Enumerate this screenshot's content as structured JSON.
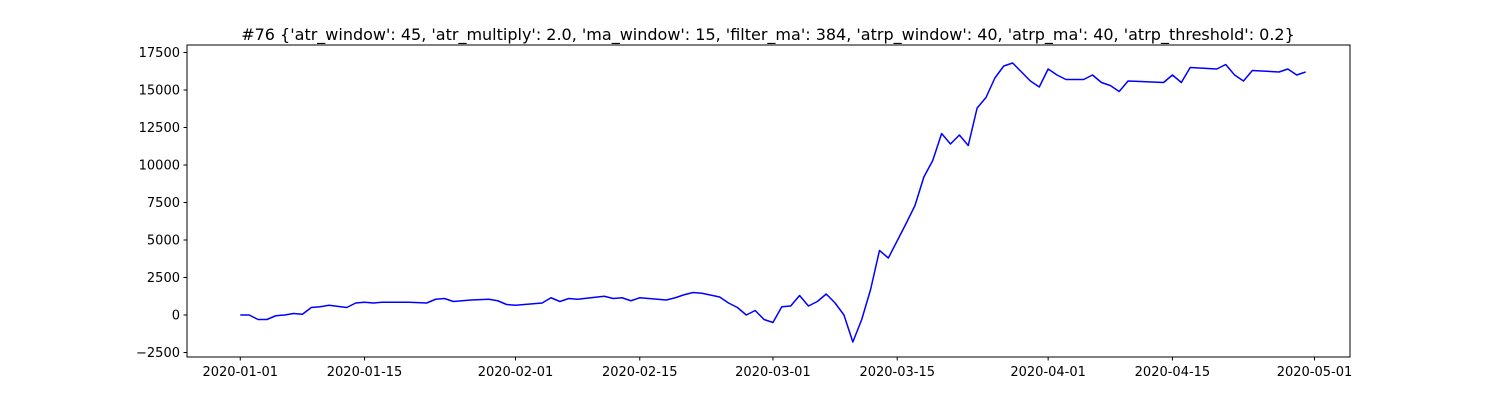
{
  "chart_data": {
    "type": "line",
    "title": "#76 {'atr_window': 45, 'atr_multiply': 2.0, 'ma_window': 15, 'filter_ma': 384, 'atrp_window': 40, 'atrp_ma': 40, 'atrp_threshold': 0.2}",
    "color": "#0000ff",
    "x": [
      "2020-01-01",
      "2020-01-02",
      "2020-01-03",
      "2020-01-04",
      "2020-01-05",
      "2020-01-06",
      "2020-01-07",
      "2020-01-08",
      "2020-01-09",
      "2020-01-10",
      "2020-01-11",
      "2020-01-13",
      "2020-01-14",
      "2020-01-15",
      "2020-01-16",
      "2020-01-17",
      "2020-01-20",
      "2020-01-22",
      "2020-01-23",
      "2020-01-24",
      "2020-01-25",
      "2020-01-27",
      "2020-01-29",
      "2020-01-30",
      "2020-01-31",
      "2020-02-01",
      "2020-02-04",
      "2020-02-05",
      "2020-02-06",
      "2020-02-07",
      "2020-02-08",
      "2020-02-11",
      "2020-02-12",
      "2020-02-13",
      "2020-02-14",
      "2020-02-15",
      "2020-02-18",
      "2020-02-19",
      "2020-02-20",
      "2020-02-21",
      "2020-02-22",
      "2020-02-24",
      "2020-02-25",
      "2020-02-26",
      "2020-02-27",
      "2020-02-28",
      "2020-02-29",
      "2020-03-01",
      "2020-03-02",
      "2020-03-03",
      "2020-03-04",
      "2020-03-05",
      "2020-03-06",
      "2020-03-07",
      "2020-03-08",
      "2020-03-09",
      "2020-03-10",
      "2020-03-11",
      "2020-03-12",
      "2020-03-13",
      "2020-03-14",
      "2020-03-16",
      "2020-03-17",
      "2020-03-18",
      "2020-03-19",
      "2020-03-20",
      "2020-03-21",
      "2020-03-22",
      "2020-03-23",
      "2020-03-24",
      "2020-03-25",
      "2020-03-26",
      "2020-03-27",
      "2020-03-28",
      "2020-03-29",
      "2020-03-30",
      "2020-03-31",
      "2020-04-01",
      "2020-04-02",
      "2020-04-03",
      "2020-04-05",
      "2020-04-06",
      "2020-04-07",
      "2020-04-08",
      "2020-04-09",
      "2020-04-10",
      "2020-04-14",
      "2020-04-15",
      "2020-04-16",
      "2020-04-17",
      "2020-04-20",
      "2020-04-21",
      "2020-04-22",
      "2020-04-23",
      "2020-04-24",
      "2020-04-27",
      "2020-04-28",
      "2020-04-29",
      "2020-04-30"
    ],
    "values": [
      0,
      0,
      -300,
      -300,
      -50,
      0,
      100,
      50,
      500,
      550,
      650,
      500,
      800,
      850,
      800,
      850,
      850,
      800,
      1050,
      1100,
      900,
      1000,
      1050,
      950,
      700,
      650,
      800,
      1150,
      900,
      1100,
      1050,
      1250,
      1100,
      1150,
      950,
      1150,
      1000,
      1150,
      1350,
      1500,
      1450,
      1200,
      800,
      500,
      0,
      300,
      -300,
      -500,
      550,
      600,
      1300,
      600,
      900,
      1400,
      800,
      0,
      -1800,
      -300,
      1700,
      4300,
      3800,
      6100,
      7300,
      9200,
      10300,
      12100,
      11400,
      12000,
      11300,
      13800,
      14500,
      15800,
      16600,
      16800,
      16200,
      15600,
      15200,
      16400,
      16000,
      15700,
      15700,
      16000,
      15500,
      15300,
      14900,
      15600,
      15500,
      16000,
      15500,
      16500,
      16400,
      16700,
      16000,
      15600,
      16300,
      16200,
      16400,
      16000,
      16200
    ],
    "xlim": [
      "2019-12-26",
      "2020-05-05"
    ],
    "xticks": [
      "2020-01-01",
      "2020-01-15",
      "2020-02-01",
      "2020-02-15",
      "2020-03-01",
      "2020-03-15",
      "2020-04-01",
      "2020-04-15",
      "2020-05-01"
    ],
    "ylim": [
      -2800,
      18000
    ],
    "yticks": [
      {
        "value": -2500,
        "label": "−2500"
      },
      0,
      2500,
      5000,
      7500,
      10000,
      12500,
      15000,
      17500
    ]
  }
}
